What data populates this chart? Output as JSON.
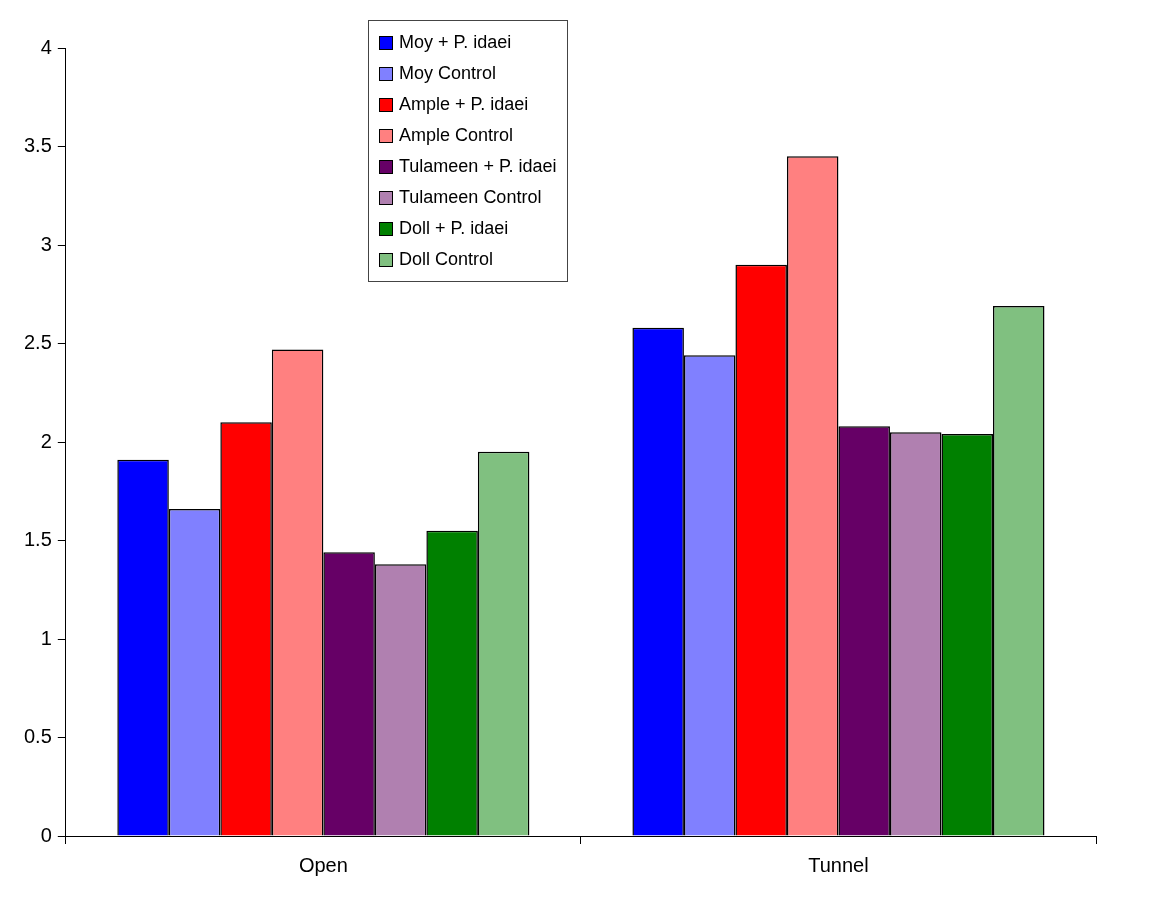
{
  "chart_data": {
    "type": "bar",
    "categories": [
      "Open",
      "Tunnel"
    ],
    "series": [
      {
        "name": "Moy + P. idaei",
        "color": "#0000ff",
        "values": [
          1.91,
          2.58
        ]
      },
      {
        "name": "Moy Control",
        "color": "#8080ff",
        "values": [
          1.66,
          2.44
        ]
      },
      {
        "name": "Ample  + P. idaei",
        "color": "#ff0000",
        "values": [
          2.1,
          2.9
        ]
      },
      {
        "name": "Ample Control",
        "color": "#ff8080",
        "values": [
          2.47,
          3.45
        ]
      },
      {
        "name": "Tulameen + P. idaei",
        "color": "#660066",
        "values": [
          1.44,
          2.08
        ]
      },
      {
        "name": "Tulameen Control",
        "color": "#b080b0",
        "values": [
          1.38,
          2.05
        ]
      },
      {
        "name": "Doll + P. idaei",
        "color": "#008000",
        "values": [
          1.55,
          2.04
        ]
      },
      {
        "name": "Doll Control",
        "color": "#80c080",
        "values": [
          1.95,
          2.69
        ]
      }
    ],
    "ylim": [
      0,
      4
    ],
    "yticks": [
      0,
      0.5,
      1,
      1.5,
      2,
      2.5,
      3,
      3.5,
      4
    ],
    "grid": false,
    "legend": "top"
  }
}
